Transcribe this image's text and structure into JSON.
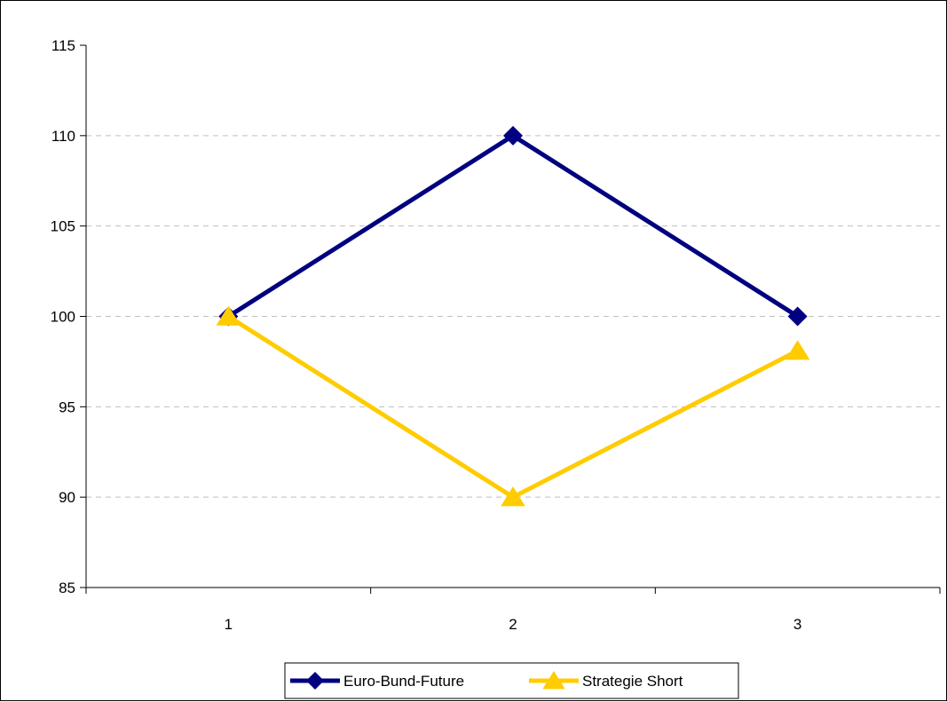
{
  "chart_data": {
    "type": "line",
    "title": "",
    "xlabel": "",
    "ylabel": "",
    "categories": [
      "1",
      "2",
      "3"
    ],
    "ylim": [
      85,
      115
    ],
    "yticks": [
      85,
      90,
      95,
      100,
      105,
      110,
      115
    ],
    "grid": "horizontal dashed",
    "legend_placement": "bottom",
    "series": [
      {
        "name": "Euro-Bund-Future",
        "values": [
          100,
          110,
          100
        ],
        "color": "#000080",
        "marker": "diamond"
      },
      {
        "name": "Strategie Short",
        "values": [
          100,
          90,
          98.1
        ],
        "color": "#FFCC00",
        "marker": "triangle"
      }
    ]
  }
}
